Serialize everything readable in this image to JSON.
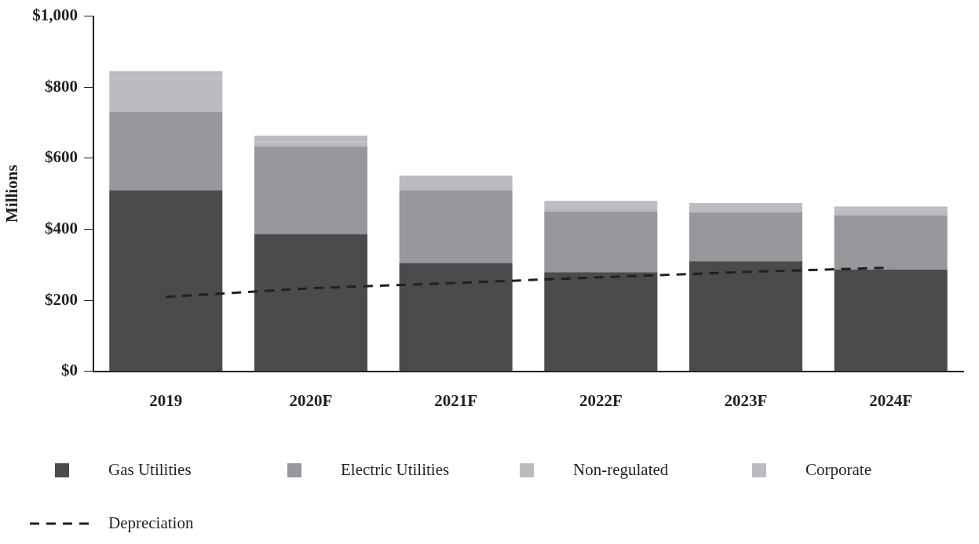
{
  "chart_data": {
    "type": "bar",
    "stacked": true,
    "ylabel": "Millions",
    "categories": [
      "2019",
      "2020F",
      "2021F",
      "2022F",
      "2023F",
      "2024F"
    ],
    "series": [
      {
        "name": "Gas Utilities",
        "color": "#4a4b4d",
        "values": [
          509,
          387,
          305,
          279,
          310,
          287
        ]
      },
      {
        "name": "Electric Utilities",
        "color": "#97989b",
        "values": [
          222,
          247,
          204,
          171,
          138,
          153
        ]
      },
      {
        "name": "Non-regulated",
        "color": "#bbbcbf",
        "values": [
          95,
          14,
          20,
          20,
          15,
          16
        ]
      },
      {
        "name": "Corporate",
        "color": "#bbbcbf",
        "values": [
          19,
          16,
          22,
          10,
          11,
          8
        ]
      },
      {
        "name": "Depreciation",
        "type": "line",
        "color": "#231f20",
        "line_style": "dashed",
        "marker": "none",
        "values": [
          210,
          234,
          249,
          265,
          280,
          292
        ]
      }
    ],
    "ylim": [
      0,
      1000
    ],
    "yticks": [
      {
        "value": 0,
        "label": "$0"
      },
      {
        "value": 200,
        "label": "$200"
      },
      {
        "value": 400,
        "label": "$400"
      },
      {
        "value": 600,
        "label": "$600"
      },
      {
        "value": 800,
        "label": "$800"
      },
      {
        "value": 1000,
        "label": "$1,000"
      }
    ],
    "grid": false,
    "legend": "bottom"
  }
}
